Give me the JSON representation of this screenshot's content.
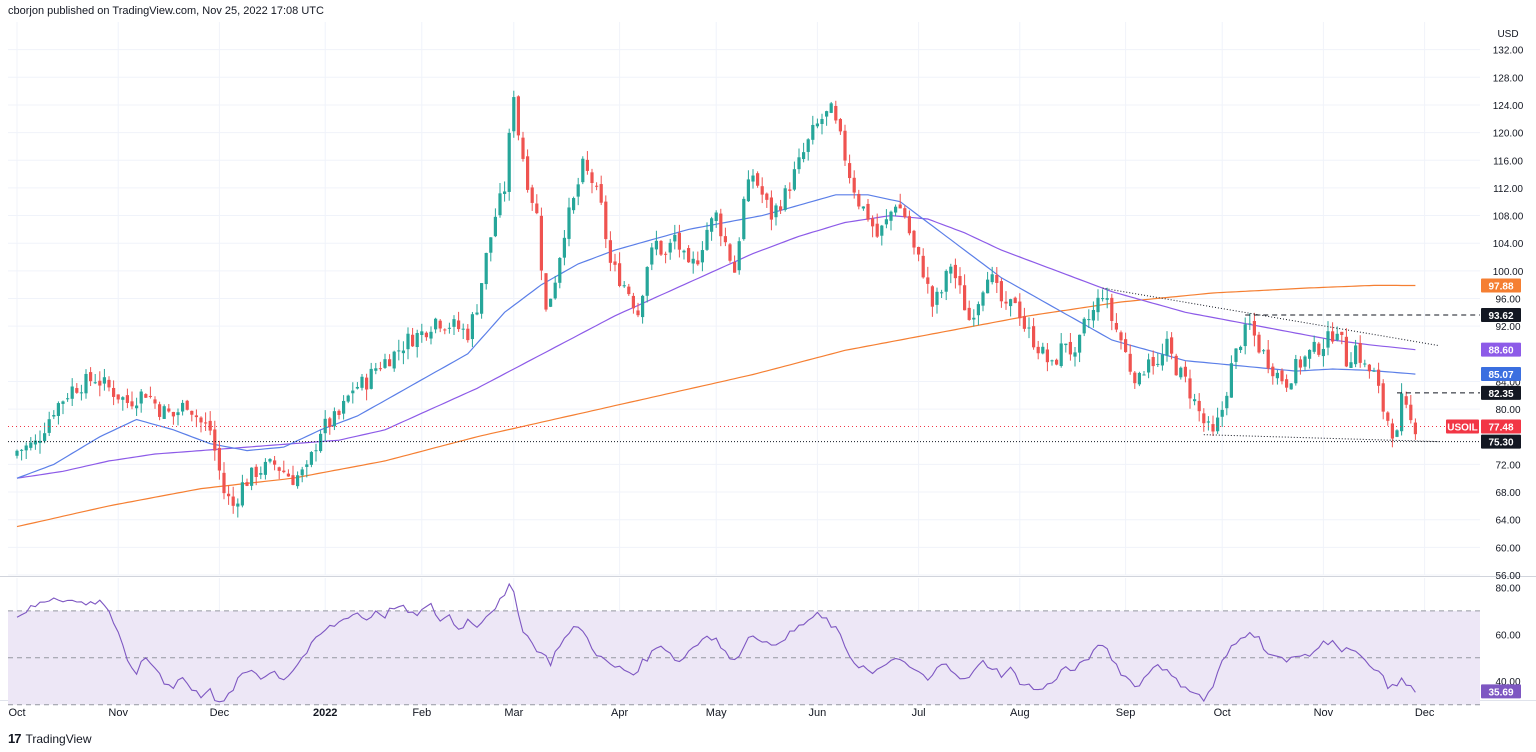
{
  "header": {
    "published": "cborjon published on TradingView.com, Nov 25, 2022 17:08 UTC"
  },
  "footer": {
    "brand": "TradingView",
    "logo_glyph": "17"
  },
  "colors": {
    "up": "#26a69a",
    "down": "#ef5350",
    "ma50": "#5b7fe8",
    "ma100": "#8d5be8",
    "ma200": "#f57f32",
    "rsi": "#7e57c2",
    "rsi_band": "#ede7f6",
    "price_tag": "#f23645"
  },
  "chart_data": {
    "type": "candlestick",
    "symbol": "USOIL",
    "currency": "USD",
    "price_axis": {
      "ticks": [
        132,
        128,
        124,
        120,
        116,
        112,
        108,
        104,
        100,
        96,
        92,
        84,
        80,
        72,
        68,
        64,
        60,
        56
      ],
      "tick_labels": [
        "132.00",
        "128.00",
        "124.00",
        "120.00",
        "116.00",
        "112.00",
        "108.00",
        "104.00",
        "100.00",
        "96.00",
        "92.00",
        "84.00",
        "80.00",
        "72.00",
        "68.00",
        "64.00",
        "60.00",
        "56.00"
      ],
      "range": [
        56,
        136
      ]
    },
    "time_axis": {
      "labels": [
        "Oct",
        "Nov",
        "Dec",
        "2022",
        "Feb",
        "Mar",
        "Apr",
        "May",
        "Jun",
        "Jul",
        "Aug",
        "Sep",
        "Oct",
        "Nov",
        "Dec"
      ],
      "label_bars": [
        0,
        22,
        44,
        67,
        88,
        108,
        131,
        152,
        174,
        196,
        218,
        241,
        262,
        284,
        306
      ]
    },
    "price_tags": [
      {
        "label": "97.88",
        "value": 97.88,
        "role": "200-day SMA"
      },
      {
        "label": "93.62",
        "value": 93.62,
        "role": "resistance"
      },
      {
        "label": "88.60",
        "value": 88.6,
        "role": "100-day SMA"
      },
      {
        "label": "85.07",
        "value": 85.07,
        "role": "50-day SMA"
      },
      {
        "label": "82.35",
        "value": 82.35,
        "role": "resistance"
      },
      {
        "label": "77.48",
        "value": 77.48,
        "role": "last price",
        "symbol": "USOIL"
      },
      {
        "label": "75.30",
        "value": 75.3,
        "role": "support"
      }
    ],
    "close_anchors": [
      [
        0,
        74
      ],
      [
        4,
        75
      ],
      [
        8,
        80
      ],
      [
        12,
        83
      ],
      [
        17,
        84.5
      ],
      [
        20,
        83
      ],
      [
        24,
        81
      ],
      [
        28,
        82.5
      ],
      [
        31,
        80
      ],
      [
        34,
        79
      ],
      [
        37,
        81
      ],
      [
        40,
        78
      ],
      [
        42,
        77
      ],
      [
        45,
        68
      ],
      [
        47,
        66
      ],
      [
        49,
        69
      ],
      [
        52,
        71
      ],
      [
        56,
        72
      ],
      [
        60,
        70
      ],
      [
        63,
        71
      ],
      [
        66,
        77
      ],
      [
        70,
        79
      ],
      [
        73,
        83
      ],
      [
        76,
        84
      ],
      [
        78,
        86
      ],
      [
        82,
        88
      ],
      [
        85,
        90
      ],
      [
        88,
        91
      ],
      [
        91,
        93
      ],
      [
        95,
        92
      ],
      [
        98,
        91
      ],
      [
        100,
        95
      ],
      [
        102,
        102
      ],
      [
        104,
        108
      ],
      [
        106,
        112
      ],
      [
        107,
        119
      ],
      [
        108,
        126
      ],
      [
        109,
        120
      ],
      [
        111,
        113
      ],
      [
        113,
        108
      ],
      [
        115,
        94
      ],
      [
        117,
        99
      ],
      [
        119,
        106
      ],
      [
        121,
        110
      ],
      [
        123,
        115
      ],
      [
        125,
        113
      ],
      [
        127,
        109
      ],
      [
        129,
        101
      ],
      [
        131,
        99
      ],
      [
        133,
        97
      ],
      [
        135,
        94
      ],
      [
        137,
        101
      ],
      [
        139,
        104
      ],
      [
        141,
        102
      ],
      [
        143,
        105
      ],
      [
        146,
        100
      ],
      [
        148,
        102
      ],
      [
        150,
        106
      ],
      [
        152,
        108
      ],
      [
        154,
        104
      ],
      [
        156,
        100
      ],
      [
        158,
        110
      ],
      [
        160,
        114
      ],
      [
        162,
        111
      ],
      [
        164,
        108
      ],
      [
        167,
        111
      ],
      [
        169,
        114
      ],
      [
        171,
        117
      ],
      [
        173,
        120
      ],
      [
        175,
        122
      ],
      [
        177,
        123
      ],
      [
        179,
        119
      ],
      [
        181,
        114
      ],
      [
        183,
        110
      ],
      [
        185,
        108
      ],
      [
        187,
        105
      ],
      [
        189,
        107
      ],
      [
        191,
        110
      ],
      [
        193,
        108
      ],
      [
        195,
        103
      ],
      [
        197,
        100
      ],
      [
        199,
        95
      ],
      [
        201,
        97
      ],
      [
        203,
        101
      ],
      [
        205,
        97
      ],
      [
        207,
        93
      ],
      [
        209,
        96
      ],
      [
        211,
        100
      ],
      [
        213,
        97
      ],
      [
        215,
        94
      ],
      [
        217,
        96
      ],
      [
        219,
        92
      ],
      [
        221,
        90
      ],
      [
        223,
        88
      ],
      [
        225,
        86
      ],
      [
        228,
        90
      ],
      [
        230,
        87
      ],
      [
        232,
        92
      ],
      [
        234,
        94
      ],
      [
        236,
        97
      ],
      [
        238,
        93
      ],
      [
        240,
        90
      ],
      [
        242,
        86
      ],
      [
        244,
        84
      ],
      [
        246,
        88
      ],
      [
        248,
        86
      ],
      [
        250,
        89
      ],
      [
        252,
        86
      ],
      [
        254,
        84
      ],
      [
        256,
        81
      ],
      [
        258,
        78
      ],
      [
        260,
        76
      ],
      [
        262,
        80
      ],
      [
        264,
        86
      ],
      [
        266,
        90
      ],
      [
        268,
        92
      ],
      [
        270,
        89
      ],
      [
        272,
        87
      ],
      [
        274,
        85
      ],
      [
        276,
        84
      ],
      [
        278,
        86
      ],
      [
        281,
        88
      ],
      [
        283,
        89
      ],
      [
        285,
        90
      ],
      [
        287,
        92
      ],
      [
        289,
        87
      ],
      [
        291,
        89
      ],
      [
        293,
        86
      ],
      [
        295,
        85
      ],
      [
        297,
        80
      ],
      [
        299,
        77
      ],
      [
        300,
        76
      ],
      [
        301,
        81
      ],
      [
        303,
        78
      ],
      [
        304,
        77.5
      ]
    ],
    "ma50_anchors": [
      [
        0,
        70
      ],
      [
        8,
        72
      ],
      [
        18,
        76
      ],
      [
        26,
        78.5
      ],
      [
        34,
        77
      ],
      [
        42,
        75
      ],
      [
        50,
        74
      ],
      [
        58,
        74.5
      ],
      [
        66,
        77
      ],
      [
        74,
        79
      ],
      [
        82,
        82
      ],
      [
        90,
        85
      ],
      [
        98,
        88
      ],
      [
        106,
        94
      ],
      [
        114,
        98
      ],
      [
        122,
        101
      ],
      [
        130,
        103
      ],
      [
        138,
        104.5
      ],
      [
        146,
        106
      ],
      [
        154,
        107
      ],
      [
        162,
        108
      ],
      [
        170,
        109.5
      ],
      [
        178,
        111
      ],
      [
        185,
        111
      ],
      [
        192,
        110
      ],
      [
        198,
        107
      ],
      [
        206,
        103
      ],
      [
        214,
        99
      ],
      [
        222,
        96
      ],
      [
        230,
        93
      ],
      [
        238,
        90
      ],
      [
        246,
        88.5
      ],
      [
        254,
        87
      ],
      [
        262,
        86.5
      ],
      [
        270,
        86
      ],
      [
        278,
        85.5
      ],
      [
        286,
        85.8
      ],
      [
        294,
        85.6
      ],
      [
        304,
        85.07
      ]
    ],
    "ma100_anchors": [
      [
        0,
        70
      ],
      [
        10,
        71
      ],
      [
        20,
        72.5
      ],
      [
        30,
        73.5
      ],
      [
        40,
        74
      ],
      [
        50,
        74.5
      ],
      [
        60,
        75
      ],
      [
        70,
        75.5
      ],
      [
        80,
        77
      ],
      [
        90,
        80
      ],
      [
        100,
        83
      ],
      [
        110,
        86.5
      ],
      [
        120,
        90
      ],
      [
        130,
        93.5
      ],
      [
        140,
        96.5
      ],
      [
        150,
        99.5
      ],
      [
        160,
        102.5
      ],
      [
        170,
        105
      ],
      [
        180,
        107
      ],
      [
        190,
        108
      ],
      [
        198,
        107.5
      ],
      [
        206,
        105.5
      ],
      [
        214,
        103
      ],
      [
        222,
        101
      ],
      [
        230,
        99
      ],
      [
        238,
        97
      ],
      [
        246,
        95.5
      ],
      [
        254,
        94
      ],
      [
        262,
        93
      ],
      [
        270,
        92
      ],
      [
        278,
        91
      ],
      [
        286,
        90
      ],
      [
        294,
        89.3
      ],
      [
        304,
        88.6
      ]
    ],
    "ma200_anchors": [
      [
        0,
        63
      ],
      [
        20,
        66
      ],
      [
        40,
        68.5
      ],
      [
        60,
        70
      ],
      [
        80,
        72.5
      ],
      [
        100,
        76
      ],
      [
        120,
        79
      ],
      [
        140,
        82
      ],
      [
        160,
        85
      ],
      [
        180,
        88.5
      ],
      [
        200,
        91
      ],
      [
        220,
        93.5
      ],
      [
        240,
        95.5
      ],
      [
        260,
        96.8
      ],
      [
        280,
        97.5
      ],
      [
        295,
        97.9
      ],
      [
        304,
        97.88
      ]
    ],
    "rsi": {
      "label": "35.69",
      "value": 35.69,
      "range": [
        32,
        84
      ],
      "ticks": [
        80,
        60,
        40
      ],
      "tick_labels": [
        "80.00",
        "60.00",
        "40.00"
      ],
      "band": [
        30,
        70
      ],
      "anchors": [
        [
          0,
          68
        ],
        [
          4,
          72
        ],
        [
          8,
          76
        ],
        [
          12,
          74
        ],
        [
          16,
          73
        ],
        [
          18,
          75
        ],
        [
          20,
          70
        ],
        [
          22,
          60
        ],
        [
          24,
          48
        ],
        [
          26,
          44
        ],
        [
          28,
          50
        ],
        [
          30,
          46
        ],
        [
          32,
          40
        ],
        [
          34,
          38
        ],
        [
          36,
          42
        ],
        [
          38,
          36
        ],
        [
          40,
          34
        ],
        [
          42,
          38
        ],
        [
          43,
          32
        ],
        [
          44,
          30
        ],
        [
          45,
          31
        ],
        [
          47,
          37
        ],
        [
          49,
          43
        ],
        [
          51,
          45
        ],
        [
          53,
          42
        ],
        [
          56,
          44
        ],
        [
          58,
          41
        ],
        [
          60,
          45
        ],
        [
          62,
          50
        ],
        [
          64,
          55
        ],
        [
          66,
          60
        ],
        [
          68,
          63
        ],
        [
          70,
          65
        ],
        [
          72,
          68
        ],
        [
          74,
          69
        ],
        [
          76,
          66
        ],
        [
          78,
          70
        ],
        [
          80,
          68
        ],
        [
          82,
          72
        ],
        [
          84,
          71
        ],
        [
          86,
          68
        ],
        [
          88,
          70
        ],
        [
          90,
          72
        ],
        [
          92,
          66
        ],
        [
          94,
          68
        ],
        [
          96,
          62
        ],
        [
          98,
          66
        ],
        [
          100,
          64
        ],
        [
          102,
          68
        ],
        [
          104,
          72
        ],
        [
          106,
          76
        ],
        [
          107,
          80
        ],
        [
          108,
          78
        ],
        [
          109,
          70
        ],
        [
          110,
          62
        ],
        [
          112,
          56
        ],
        [
          114,
          52
        ],
        [
          116,
          48
        ],
        [
          118,
          56
        ],
        [
          120,
          60
        ],
        [
          122,
          64
        ],
        [
          124,
          58
        ],
        [
          126,
          52
        ],
        [
          128,
          48
        ],
        [
          130,
          46
        ],
        [
          132,
          45
        ],
        [
          134,
          43
        ],
        [
          136,
          48
        ],
        [
          138,
          52
        ],
        [
          140,
          56
        ],
        [
          142,
          52
        ],
        [
          144,
          48
        ],
        [
          146,
          53
        ],
        [
          148,
          56
        ],
        [
          150,
          60
        ],
        [
          152,
          58
        ],
        [
          154,
          52
        ],
        [
          156,
          48
        ],
        [
          158,
          56
        ],
        [
          160,
          60
        ],
        [
          162,
          58
        ],
        [
          164,
          54
        ],
        [
          166,
          58
        ],
        [
          168,
          60
        ],
        [
          170,
          63
        ],
        [
          172,
          66
        ],
        [
          174,
          68
        ],
        [
          176,
          66
        ],
        [
          178,
          62
        ],
        [
          180,
          55
        ],
        [
          182,
          48
        ],
        [
          184,
          46
        ],
        [
          186,
          43
        ],
        [
          188,
          45
        ],
        [
          190,
          50
        ],
        [
          192,
          48
        ],
        [
          194,
          46
        ],
        [
          196,
          44
        ],
        [
          198,
          40
        ],
        [
          200,
          45
        ],
        [
          202,
          48
        ],
        [
          204,
          44
        ],
        [
          206,
          40
        ],
        [
          208,
          44
        ],
        [
          210,
          48
        ],
        [
          212,
          46
        ],
        [
          214,
          43
        ],
        [
          216,
          45
        ],
        [
          218,
          40
        ],
        [
          220,
          38
        ],
        [
          222,
          36
        ],
        [
          224,
          38
        ],
        [
          226,
          42
        ],
        [
          228,
          46
        ],
        [
          230,
          44
        ],
        [
          232,
          49
        ],
        [
          234,
          52
        ],
        [
          236,
          56
        ],
        [
          238,
          50
        ],
        [
          240,
          44
        ],
        [
          242,
          40
        ],
        [
          244,
          38
        ],
        [
          246,
          44
        ],
        [
          248,
          48
        ],
        [
          250,
          44
        ],
        [
          252,
          40
        ],
        [
          254,
          38
        ],
        [
          256,
          35
        ],
        [
          258,
          32
        ],
        [
          260,
          38
        ],
        [
          262,
          48
        ],
        [
          264,
          54
        ],
        [
          266,
          58
        ],
        [
          268,
          62
        ],
        [
          270,
          58
        ],
        [
          272,
          52
        ],
        [
          274,
          50
        ],
        [
          276,
          48
        ],
        [
          278,
          52
        ],
        [
          280,
          50
        ],
        [
          282,
          53
        ],
        [
          284,
          56
        ],
        [
          286,
          58
        ],
        [
          288,
          52
        ],
        [
          290,
          54
        ],
        [
          292,
          50
        ],
        [
          294,
          46
        ],
        [
          296,
          44
        ],
        [
          298,
          38
        ],
        [
          300,
          37
        ],
        [
          301,
          42
        ],
        [
          303,
          37
        ],
        [
          304,
          35.69
        ]
      ]
    }
  }
}
